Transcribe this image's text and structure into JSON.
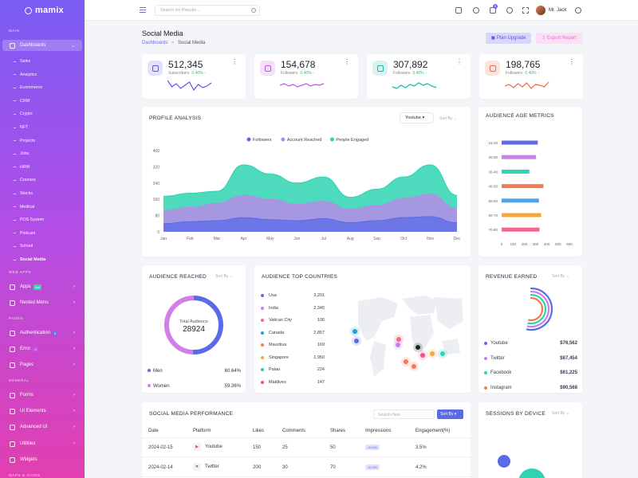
{
  "brand": {
    "name": "mamix"
  },
  "sidebar": {
    "sections": {
      "main": "MAIN",
      "web_apps": "WEB APPS",
      "pages": "PAGES",
      "general": "GENERAL",
      "maps": "MAPS & ICONS"
    },
    "dashboards": "Dashboards",
    "sub_items": [
      "Sales",
      "Analytics",
      "Ecommerce",
      "CRM",
      "Crypto",
      "NFT",
      "Projects",
      "Jobs",
      "HRM",
      "Courses",
      "Stocks",
      "Medical",
      "POS System",
      "Podcast",
      "School",
      "Social Media"
    ],
    "apps": {
      "label": "Apps",
      "badge": "Hot"
    },
    "nested": "Nested Menu",
    "auth": {
      "label": "Authentication",
      "badge": "8"
    },
    "error": {
      "label": "Error",
      "badge": "3"
    },
    "pages": "Pages",
    "forms": "Forms",
    "ui": "UI Elements",
    "advanced": "Advanced UI",
    "utilities": "Utilities",
    "widgets": "Widgets"
  },
  "header": {
    "search_placeholder": "Search for Results...",
    "cart_count": "5",
    "user": "Mr. Jack"
  },
  "page": {
    "title": "Social Media",
    "crumb_root": "Dashboards",
    "crumb_current": "Social Media",
    "plan_btn": "Plan Upgrade",
    "export_btn": "Export Report"
  },
  "stats": [
    {
      "value": "512,345",
      "label": "Subscribers",
      "change": "0.40% ↑",
      "color": "#5a58e6",
      "bg": "#e3e2fb"
    },
    {
      "value": "154,678",
      "label": "Followers",
      "change": "0.40% ↑",
      "color": "#c054e0",
      "bg": "#f3e0fa"
    },
    {
      "value": "307,892",
      "label": "Followers",
      "change": "0.40% ↑",
      "color": "#13b9a0",
      "bg": "#d9f4ef"
    },
    {
      "value": "198,765",
      "label": "Followers",
      "change": "0.40% ↑",
      "color": "#f06a43",
      "bg": "#fde4dc"
    }
  ],
  "profile": {
    "title": "PROFILE ANALYSIS",
    "select": "Youtube",
    "sort": "Sort By"
  },
  "chart_data": [
    {
      "type": "area",
      "x": [
        "Jan",
        "Feb",
        "Mar",
        "Apr",
        "May",
        "Jun",
        "Jul",
        "Aug",
        "Sep",
        "Oct",
        "Nov",
        "Dec"
      ],
      "yticks": [
        "0",
        "80",
        "160",
        "240",
        "320",
        "400"
      ],
      "ylim": [
        0,
        400
      ],
      "series": [
        {
          "name": "People Engaged",
          "color": "#2ed3b2",
          "values": [
            175,
            190,
            200,
            330,
            285,
            240,
            270,
            170,
            210,
            270,
            330,
            180
          ]
        },
        {
          "name": "Account Reached",
          "color": "#b58ce8",
          "values": [
            105,
            120,
            140,
            180,
            160,
            135,
            150,
            110,
            130,
            165,
            185,
            115
          ]
        },
        {
          "name": "Followers",
          "color": "#5b6be8",
          "values": [
            40,
            50,
            55,
            70,
            60,
            55,
            65,
            45,
            55,
            70,
            75,
            45
          ]
        }
      ],
      "legend": "top"
    },
    {
      "type": "bar",
      "orientation": "horizontal",
      "title": "AUDIENCE AGE METRICS",
      "categories": [
        "15-20",
        "20-30",
        "30-40",
        "40-50",
        "50-60",
        "60-70",
        "70-80"
      ],
      "values": [
        320,
        305,
        245,
        370,
        330,
        350,
        335
      ],
      "colors": [
        "#5b6be8",
        "#c980e8",
        "#2ed3b2",
        "#f07a52",
        "#4aa3f0",
        "#f5a53d",
        "#f2658c"
      ],
      "xticks": [
        "0",
        "100",
        "200",
        "300",
        "400",
        "500",
        "600"
      ],
      "xlim": [
        0,
        600
      ]
    },
    {
      "type": "pie",
      "title": "AUDIENCE REACHED",
      "center_label": "Total Audience",
      "center_value": "28924",
      "slices": [
        {
          "name": "Men",
          "value": 60.64,
          "label": "60.64%",
          "color": "#5b6be8"
        },
        {
          "name": "Women",
          "value": 59.36,
          "label": "59.36%",
          "color": "#d07fe8"
        }
      ]
    },
    {
      "type": "table",
      "title": "AUDIENCE TOP COUNTRIES",
      "rows": [
        {
          "name": "Usa",
          "value": "3,201",
          "color": "#5b6be8"
        },
        {
          "name": "India",
          "value": "2,345",
          "color": "#c980e8"
        },
        {
          "name": "Vatican City",
          "value": "106",
          "color": "#f2658c"
        },
        {
          "name": "Canada",
          "value": "2,857",
          "color": "#1aa3d8"
        },
        {
          "name": "Mauritius",
          "value": "169",
          "color": "#f07a52"
        },
        {
          "name": "Singapore",
          "value": "1,950",
          "color": "#f5a53d"
        },
        {
          "name": "Palau",
          "value": "224",
          "color": "#2ed3b2"
        },
        {
          "name": "Maldives",
          "value": "147",
          "color": "#ef4e8a"
        }
      ]
    },
    {
      "type": "table",
      "title": "REVENUE EARNED",
      "rows": [
        {
          "name": "Youtube",
          "value": "$76,562",
          "color": "#5b6be8"
        },
        {
          "name": "Twitter",
          "value": "$67,454",
          "color": "#c980e8"
        },
        {
          "name": "Facebook",
          "value": "$61,225",
          "color": "#2ed3b2"
        },
        {
          "name": "Instagram",
          "value": "$90,568",
          "color": "#f07a52"
        }
      ]
    }
  ],
  "audience": {
    "sort": "Sort By"
  },
  "revenue": {
    "sort": "Sort By"
  },
  "performance": {
    "title": "SOCIAL MEDIA PERFORMANCE",
    "search_placeholder": "Search Here",
    "sort_btn": "Sort By",
    "headers": [
      "Date",
      "Platform",
      "Likes",
      "Comments",
      "Shares",
      "Impressions",
      "Engagement(%)"
    ],
    "rows": [
      {
        "date": "2024-02-15",
        "platform": "Youtube",
        "likes": "150",
        "comments": "25",
        "shares": "50",
        "impressions": "10,000",
        "engagement": "3.5%",
        "icon_color": "#f0483e"
      },
      {
        "date": "2024-02-14",
        "platform": "Twitter",
        "likes": "200",
        "comments": "30",
        "shares": "70",
        "impressions": "15,000",
        "engagement": "4.2%",
        "icon_color": "#222"
      }
    ]
  },
  "sessions": {
    "title": "SESSIONS BY DEVICE",
    "sort": "Sort By"
  }
}
